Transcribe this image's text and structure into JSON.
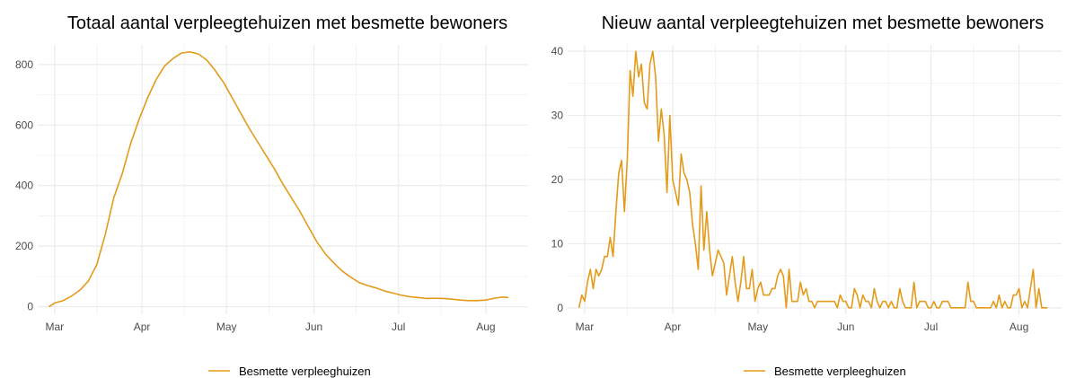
{
  "colors": {
    "series": "#e39b1b",
    "grid": "#ebebeb",
    "tick_text": "#4d4d4d",
    "title_text": "#000000"
  },
  "chart_data": [
    {
      "type": "line",
      "title": "Totaal aantal verpleegtehuizen met besmette bewoners",
      "xlabel": "",
      "ylabel": "",
      "x_axis": "date",
      "xlim": [
        "2020-02-24",
        "2020-08-16"
      ],
      "ylim": [
        -25,
        865
      ],
      "x_ticks": [
        {
          "label": "Mar",
          "date": "2020-03-01"
        },
        {
          "label": "Apr",
          "date": "2020-04-01"
        },
        {
          "label": "May",
          "date": "2020-05-01"
        },
        {
          "label": "Jun",
          "date": "2020-06-01"
        },
        {
          "label": "Jul",
          "date": "2020-07-01"
        },
        {
          "label": "Aug",
          "date": "2020-08-01"
        }
      ],
      "y_ticks": [
        0,
        200,
        400,
        600,
        800
      ],
      "grid": true,
      "legend": {
        "position": "bottom",
        "entries": [
          "Besmette verpleeghuizen"
        ]
      },
      "series": [
        {
          "name": "Besmette verpleeghuizen",
          "points": [
            [
              "2020-02-28",
              0
            ],
            [
              "2020-03-01",
              12
            ],
            [
              "2020-03-04",
              20
            ],
            [
              "2020-03-07",
              35
            ],
            [
              "2020-03-10",
              55
            ],
            [
              "2020-03-13",
              85
            ],
            [
              "2020-03-16",
              140
            ],
            [
              "2020-03-19",
              240
            ],
            [
              "2020-03-22",
              360
            ],
            [
              "2020-03-25",
              440
            ],
            [
              "2020-03-28",
              540
            ],
            [
              "2020-03-31",
              620
            ],
            [
              "2020-04-03",
              690
            ],
            [
              "2020-04-06",
              750
            ],
            [
              "2020-04-09",
              795
            ],
            [
              "2020-04-12",
              820
            ],
            [
              "2020-04-15",
              838
            ],
            [
              "2020-04-18",
              842
            ],
            [
              "2020-04-21",
              835
            ],
            [
              "2020-04-24",
              815
            ],
            [
              "2020-04-27",
              780
            ],
            [
              "2020-04-30",
              740
            ],
            [
              "2020-05-03",
              690
            ],
            [
              "2020-05-06",
              640
            ],
            [
              "2020-05-09",
              590
            ],
            [
              "2020-05-12",
              545
            ],
            [
              "2020-05-15",
              500
            ],
            [
              "2020-05-18",
              455
            ],
            [
              "2020-05-21",
              405
            ],
            [
              "2020-05-24",
              360
            ],
            [
              "2020-05-27",
              315
            ],
            [
              "2020-05-30",
              265
            ],
            [
              "2020-06-02",
              215
            ],
            [
              "2020-06-05",
              175
            ],
            [
              "2020-06-08",
              145
            ],
            [
              "2020-06-11",
              118
            ],
            [
              "2020-06-14",
              98
            ],
            [
              "2020-06-17",
              80
            ],
            [
              "2020-06-20",
              70
            ],
            [
              "2020-06-23",
              62
            ],
            [
              "2020-06-26",
              52
            ],
            [
              "2020-06-29",
              45
            ],
            [
              "2020-07-02",
              38
            ],
            [
              "2020-07-05",
              33
            ],
            [
              "2020-07-08",
              30
            ],
            [
              "2020-07-11",
              27
            ],
            [
              "2020-07-14",
              28
            ],
            [
              "2020-07-17",
              27
            ],
            [
              "2020-07-20",
              25
            ],
            [
              "2020-07-23",
              22
            ],
            [
              "2020-07-26",
              20
            ],
            [
              "2020-07-29",
              20
            ],
            [
              "2020-08-01",
              22
            ],
            [
              "2020-08-04",
              28
            ],
            [
              "2020-08-07",
              32
            ],
            [
              "2020-08-09",
              30
            ]
          ]
        }
      ]
    },
    {
      "type": "line",
      "title": "Nieuw aantal verpleegtehuizen met besmette bewoners",
      "xlabel": "",
      "ylabel": "",
      "x_axis": "date",
      "xlim": [
        "2020-02-24",
        "2020-08-16"
      ],
      "ylim": [
        -1,
        41
      ],
      "x_ticks": [
        {
          "label": "Mar",
          "date": "2020-03-01"
        },
        {
          "label": "Apr",
          "date": "2020-04-01"
        },
        {
          "label": "May",
          "date": "2020-05-01"
        },
        {
          "label": "Jun",
          "date": "2020-06-01"
        },
        {
          "label": "Jul",
          "date": "2020-07-01"
        },
        {
          "label": "Aug",
          "date": "2020-08-01"
        }
      ],
      "y_ticks": [
        0,
        10,
        20,
        30,
        40
      ],
      "grid": true,
      "legend": {
        "position": "bottom",
        "entries": [
          "Besmette verpleeghuizen"
        ]
      },
      "series": [
        {
          "name": "Besmette verpleeghuizen",
          "points": [
            [
              "2020-02-28",
              0
            ],
            [
              "2020-02-29",
              2
            ],
            [
              "2020-03-01",
              1
            ],
            [
              "2020-03-02",
              4
            ],
            [
              "2020-03-03",
              6
            ],
            [
              "2020-03-04",
              3
            ],
            [
              "2020-03-05",
              6
            ],
            [
              "2020-03-06",
              5
            ],
            [
              "2020-03-07",
              6
            ],
            [
              "2020-03-08",
              8
            ],
            [
              "2020-03-09",
              8
            ],
            [
              "2020-03-10",
              11
            ],
            [
              "2020-03-11",
              8
            ],
            [
              "2020-03-12",
              15
            ],
            [
              "2020-03-13",
              21
            ],
            [
              "2020-03-14",
              23
            ],
            [
              "2020-03-15",
              15
            ],
            [
              "2020-03-16",
              23
            ],
            [
              "2020-03-17",
              37
            ],
            [
              "2020-03-18",
              33
            ],
            [
              "2020-03-19",
              40
            ],
            [
              "2020-03-20",
              36
            ],
            [
              "2020-03-21",
              38
            ],
            [
              "2020-03-22",
              32
            ],
            [
              "2020-03-23",
              31
            ],
            [
              "2020-03-24",
              38
            ],
            [
              "2020-03-25",
              40
            ],
            [
              "2020-03-26",
              36
            ],
            [
              "2020-03-27",
              26
            ],
            [
              "2020-03-28",
              31
            ],
            [
              "2020-03-29",
              27
            ],
            [
              "2020-03-30",
              18
            ],
            [
              "2020-03-31",
              30
            ],
            [
              "2020-04-01",
              20
            ],
            [
              "2020-04-02",
              18
            ],
            [
              "2020-04-03",
              16
            ],
            [
              "2020-04-04",
              24
            ],
            [
              "2020-04-05",
              21
            ],
            [
              "2020-04-06",
              20
            ],
            [
              "2020-04-07",
              18
            ],
            [
              "2020-04-08",
              13
            ],
            [
              "2020-04-09",
              10
            ],
            [
              "2020-04-10",
              6
            ],
            [
              "2020-04-11",
              19
            ],
            [
              "2020-04-12",
              9
            ],
            [
              "2020-04-13",
              15
            ],
            [
              "2020-04-14",
              9
            ],
            [
              "2020-04-15",
              5
            ],
            [
              "2020-04-16",
              7
            ],
            [
              "2020-04-17",
              9
            ],
            [
              "2020-04-18",
              8
            ],
            [
              "2020-04-19",
              7
            ],
            [
              "2020-04-20",
              2
            ],
            [
              "2020-04-21",
              5
            ],
            [
              "2020-04-22",
              8
            ],
            [
              "2020-04-23",
              4
            ],
            [
              "2020-04-24",
              1
            ],
            [
              "2020-04-25",
              4
            ],
            [
              "2020-04-26",
              8
            ],
            [
              "2020-04-27",
              3
            ],
            [
              "2020-04-28",
              3
            ],
            [
              "2020-04-29",
              6
            ],
            [
              "2020-04-30",
              1
            ],
            [
              "2020-05-01",
              3
            ],
            [
              "2020-05-02",
              4
            ],
            [
              "2020-05-03",
              2
            ],
            [
              "2020-05-04",
              2
            ],
            [
              "2020-05-05",
              2
            ],
            [
              "2020-05-06",
              3
            ],
            [
              "2020-05-07",
              3
            ],
            [
              "2020-05-08",
              5
            ],
            [
              "2020-05-09",
              6
            ],
            [
              "2020-05-10",
              5
            ],
            [
              "2020-05-11",
              0
            ],
            [
              "2020-05-12",
              6
            ],
            [
              "2020-05-13",
              1
            ],
            [
              "2020-05-14",
              1
            ],
            [
              "2020-05-15",
              1
            ],
            [
              "2020-05-16",
              4
            ],
            [
              "2020-05-17",
              2
            ],
            [
              "2020-05-18",
              3
            ],
            [
              "2020-05-19",
              1
            ],
            [
              "2020-05-20",
              1
            ],
            [
              "2020-05-21",
              0
            ],
            [
              "2020-05-22",
              1
            ],
            [
              "2020-05-23",
              1
            ],
            [
              "2020-05-24",
              1
            ],
            [
              "2020-05-25",
              1
            ],
            [
              "2020-05-26",
              1
            ],
            [
              "2020-05-27",
              1
            ],
            [
              "2020-05-28",
              1
            ],
            [
              "2020-05-29",
              0
            ],
            [
              "2020-05-30",
              2
            ],
            [
              "2020-05-31",
              1
            ],
            [
              "2020-06-01",
              1
            ],
            [
              "2020-06-02",
              0
            ],
            [
              "2020-06-03",
              0
            ],
            [
              "2020-06-04",
              3
            ],
            [
              "2020-06-05",
              2
            ],
            [
              "2020-06-06",
              0
            ],
            [
              "2020-06-07",
              2
            ],
            [
              "2020-06-08",
              1
            ],
            [
              "2020-06-09",
              1
            ],
            [
              "2020-06-10",
              0
            ],
            [
              "2020-06-11",
              3
            ],
            [
              "2020-06-12",
              1
            ],
            [
              "2020-06-13",
              0
            ],
            [
              "2020-06-14",
              1
            ],
            [
              "2020-06-15",
              1
            ],
            [
              "2020-06-16",
              0
            ],
            [
              "2020-06-17",
              1
            ],
            [
              "2020-06-18",
              0
            ],
            [
              "2020-06-19",
              0
            ],
            [
              "2020-06-20",
              3
            ],
            [
              "2020-06-21",
              1
            ],
            [
              "2020-06-22",
              0
            ],
            [
              "2020-06-23",
              0
            ],
            [
              "2020-06-24",
              0
            ],
            [
              "2020-06-25",
              4
            ],
            [
              "2020-06-26",
              0
            ],
            [
              "2020-06-27",
              1
            ],
            [
              "2020-06-28",
              1
            ],
            [
              "2020-06-29",
              1
            ],
            [
              "2020-06-30",
              0
            ],
            [
              "2020-07-01",
              0
            ],
            [
              "2020-07-02",
              1
            ],
            [
              "2020-07-03",
              0
            ],
            [
              "2020-07-04",
              0
            ],
            [
              "2020-07-05",
              1
            ],
            [
              "2020-07-06",
              1
            ],
            [
              "2020-07-07",
              1
            ],
            [
              "2020-07-08",
              0
            ],
            [
              "2020-07-09",
              0
            ],
            [
              "2020-07-10",
              0
            ],
            [
              "2020-07-11",
              0
            ],
            [
              "2020-07-12",
              0
            ],
            [
              "2020-07-13",
              0
            ],
            [
              "2020-07-14",
              4
            ],
            [
              "2020-07-15",
              1
            ],
            [
              "2020-07-16",
              1
            ],
            [
              "2020-07-17",
              0
            ],
            [
              "2020-07-18",
              0
            ],
            [
              "2020-07-19",
              0
            ],
            [
              "2020-07-20",
              0
            ],
            [
              "2020-07-21",
              0
            ],
            [
              "2020-07-22",
              0
            ],
            [
              "2020-07-23",
              1
            ],
            [
              "2020-07-24",
              0
            ],
            [
              "2020-07-25",
              2
            ],
            [
              "2020-07-26",
              0
            ],
            [
              "2020-07-27",
              1
            ],
            [
              "2020-07-28",
              0
            ],
            [
              "2020-07-29",
              0
            ],
            [
              "2020-07-30",
              2
            ],
            [
              "2020-07-31",
              2
            ],
            [
              "2020-08-01",
              3
            ],
            [
              "2020-08-02",
              0
            ],
            [
              "2020-08-03",
              1
            ],
            [
              "2020-08-04",
              0
            ],
            [
              "2020-08-05",
              3
            ],
            [
              "2020-08-06",
              6
            ],
            [
              "2020-08-07",
              0
            ],
            [
              "2020-08-08",
              3
            ],
            [
              "2020-08-09",
              0
            ],
            [
              "2020-08-10",
              0
            ],
            [
              "2020-08-11",
              0
            ]
          ]
        }
      ]
    }
  ]
}
